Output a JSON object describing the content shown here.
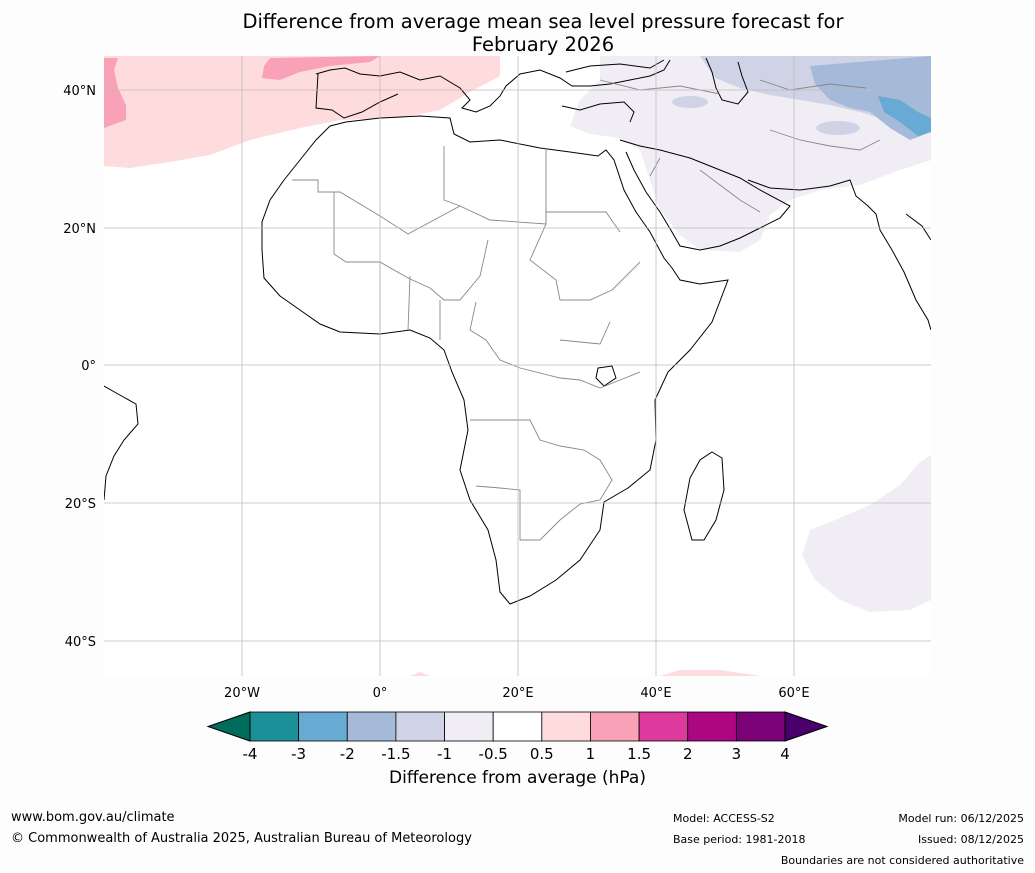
{
  "title": {
    "line1": "Difference from average mean sea level pressure forecast for",
    "line2": "February 2026"
  },
  "map": {
    "lat_labels": [
      "40°N",
      "20°N",
      "0°",
      "20°S",
      "40°S"
    ],
    "lon_labels": [
      "20°W",
      "0°",
      "20°E",
      "40°E",
      "60°E"
    ],
    "lat_values": [
      40,
      20,
      0,
      -20,
      -40
    ],
    "lon_values": [
      -20,
      0,
      20,
      40,
      60
    ],
    "extent": {
      "lon_min": -40,
      "lon_max": 80,
      "lat_min": -45,
      "lat_max": 45
    }
  },
  "colorbar": {
    "ticks": [
      "-4",
      "-3",
      "-2",
      "-1.5",
      "-1",
      "-0.5",
      "0.5",
      "1",
      "1.5",
      "2",
      "3",
      "4"
    ],
    "colors": [
      "#1b9098",
      "#67aad3",
      "#a5bad8",
      "#d0d2e6",
      "#f1edf5",
      "#ffffff",
      "#fedcde",
      "#f9a1b6",
      "#dc3a9d",
      "#ad0683",
      "#7a0177"
    ],
    "under_color": "#006d5c",
    "over_color": "#49006a",
    "label": "Difference from average (hPa)"
  },
  "footer": {
    "website": "www.bom.gov.au/climate",
    "copyright": "© Commonwealth of Australia 2025, Australian Bureau of Meteorology",
    "model": "Model: ACCESS-S2",
    "base_period": "Base period: 1981-2018",
    "model_run": "Model run: 06/12/2025",
    "issued": "Issued: 08/12/2025",
    "disclaimer": "Boundaries are not considered authoritative"
  }
}
